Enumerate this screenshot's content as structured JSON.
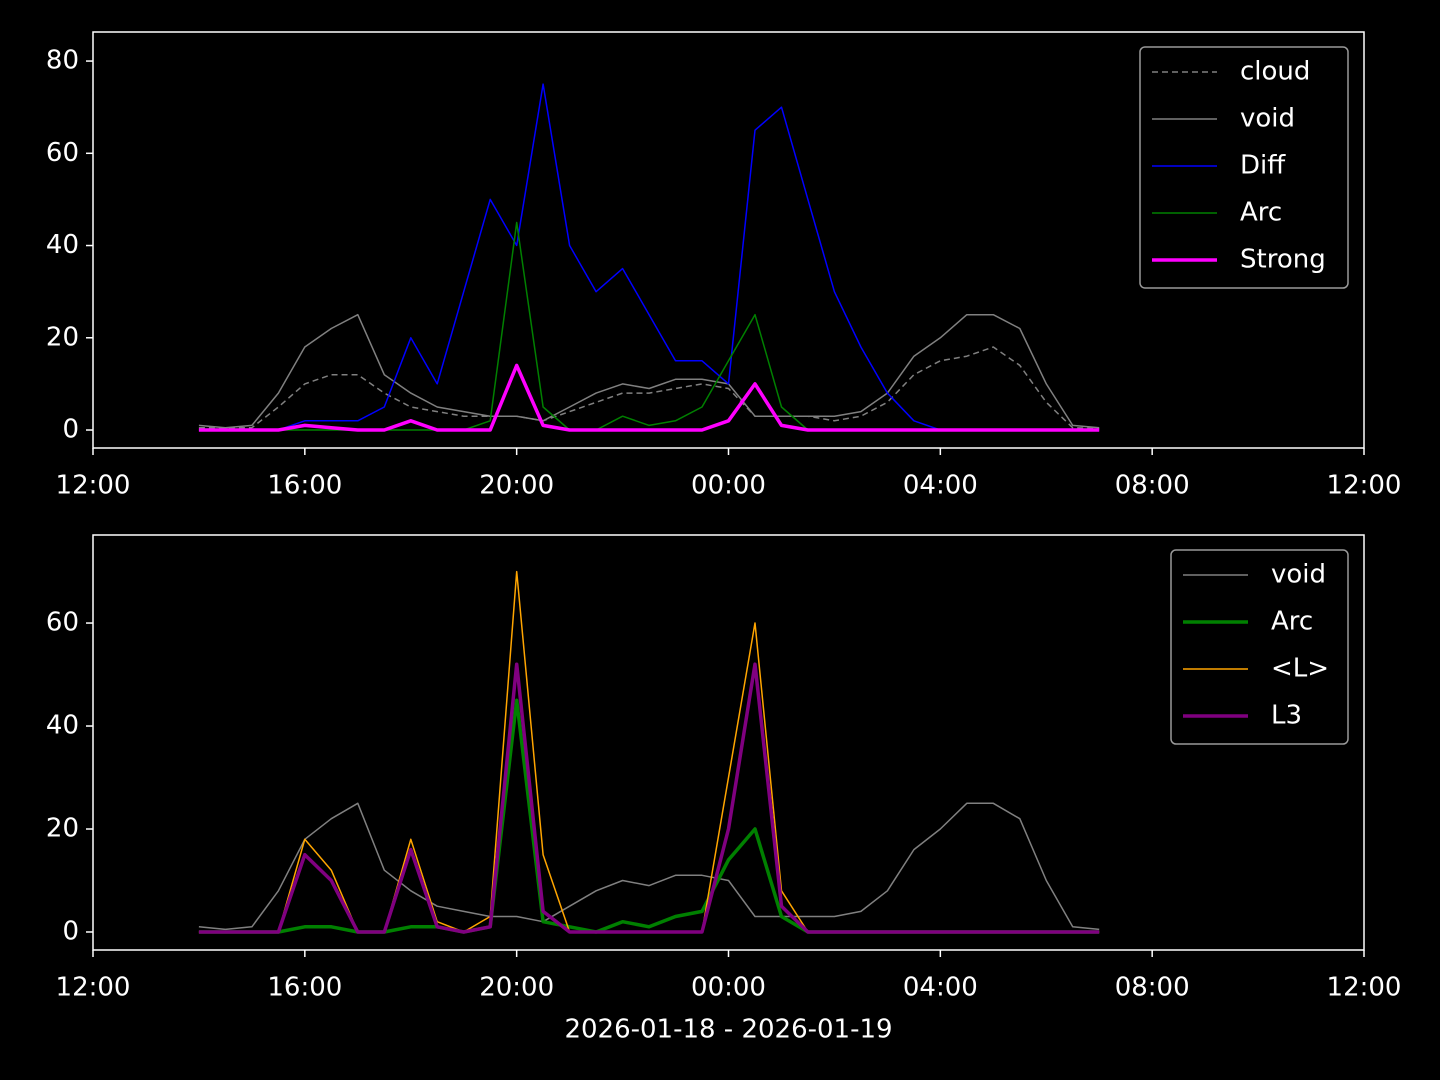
{
  "chart_data": [
    {
      "type": "line",
      "x": [
        "2026-01-18 14:00",
        "2026-01-18 14:30",
        "2026-01-18 15:00",
        "2026-01-18 15:30",
        "2026-01-18 16:00",
        "2026-01-18 16:30",
        "2026-01-18 17:00",
        "2026-01-18 17:30",
        "2026-01-18 18:00",
        "2026-01-18 18:30",
        "2026-01-18 19:00",
        "2026-01-18 19:30",
        "2026-01-18 20:00",
        "2026-01-18 20:30",
        "2026-01-18 21:00",
        "2026-01-18 21:30",
        "2026-01-18 22:00",
        "2026-01-18 22:30",
        "2026-01-18 23:00",
        "2026-01-18 23:30",
        "2026-01-19 00:00",
        "2026-01-19 00:30",
        "2026-01-19 01:00",
        "2026-01-19 01:30",
        "2026-01-19 02:00",
        "2026-01-19 02:30",
        "2026-01-19 03:00",
        "2026-01-19 03:30",
        "2026-01-19 04:00",
        "2026-01-19 04:30",
        "2026-01-19 05:00",
        "2026-01-19 05:30",
        "2026-01-19 06:00",
        "2026-01-19 06:30",
        "2026-01-19 07:00"
      ],
      "xlim": [
        "2026-01-18 12:00",
        "2026-01-19 12:00"
      ],
      "xticks": [
        {
          "value": "2026-01-18 12:00",
          "label": "12:00"
        },
        {
          "value": "2026-01-18 16:00",
          "label": "16:00"
        },
        {
          "value": "2026-01-18 20:00",
          "label": "20:00"
        },
        {
          "value": "2026-01-19 00:00",
          "label": "00:00"
        },
        {
          "value": "2026-01-19 04:00",
          "label": "04:00"
        },
        {
          "value": "2026-01-19 08:00",
          "label": "08:00"
        },
        {
          "value": "2026-01-19 12:00",
          "label": "12:00"
        }
      ],
      "ylim": [
        -3.9,
        86.3
      ],
      "yticks": [
        0,
        20,
        40,
        60,
        80
      ],
      "legend": "upper right",
      "series": [
        {
          "name": "cloud",
          "color": "#808080",
          "width": 1.5,
          "dash": true,
          "values": [
            0.5,
            0.5,
            0.5,
            5,
            10,
            12,
            12,
            8,
            5,
            4,
            3,
            3,
            3,
            2,
            4,
            6,
            8,
            8,
            9,
            10,
            9,
            3,
            3,
            3,
            2,
            3,
            6,
            12,
            15,
            16,
            18,
            14,
            6,
            0.5,
            0.3
          ]
        },
        {
          "name": "void",
          "color": "#808080",
          "width": 1.5,
          "values": [
            1,
            0.5,
            1,
            8,
            18,
            22,
            25,
            12,
            8,
            5,
            4,
            3,
            3,
            2,
            5,
            8,
            10,
            9,
            11,
            11,
            10,
            3,
            3,
            3,
            3,
            4,
            8,
            16,
            20,
            25,
            25,
            22,
            10,
            1,
            0.5
          ]
        },
        {
          "name": "Diff",
          "color": "#0000ff",
          "width": 1.5,
          "values": [
            0,
            0,
            0,
            0,
            2,
            2,
            2,
            5,
            20,
            10,
            30,
            50,
            40,
            75,
            40,
            30,
            35,
            25,
            15,
            15,
            10,
            65,
            70,
            50,
            30,
            18,
            8,
            2,
            0,
            0,
            0,
            0,
            0,
            0,
            0
          ]
        },
        {
          "name": "Arc",
          "color": "#008000",
          "width": 1.5,
          "values": [
            0,
            0,
            0,
            0,
            0,
            0,
            0,
            0,
            0,
            0,
            0,
            2,
            45,
            5,
            0,
            0,
            3,
            1,
            2,
            5,
            15,
            25,
            5,
            0,
            0,
            0,
            0,
            0,
            0,
            0,
            0,
            0,
            0,
            0,
            0
          ]
        },
        {
          "name": "Strong",
          "color": "#ff00ff",
          "width": 3.5,
          "values": [
            0,
            0,
            0,
            0,
            1,
            0.5,
            0,
            0,
            2,
            0,
            0,
            0,
            14,
            1,
            0,
            0,
            0,
            0,
            0,
            0,
            2,
            10,
            1,
            0,
            0,
            0,
            0,
            0,
            0,
            0,
            0,
            0,
            0,
            0,
            0
          ]
        }
      ]
    },
    {
      "type": "line",
      "x": [
        "2026-01-18 14:00",
        "2026-01-18 14:30",
        "2026-01-18 15:00",
        "2026-01-18 15:30",
        "2026-01-18 16:00",
        "2026-01-18 16:30",
        "2026-01-18 17:00",
        "2026-01-18 17:30",
        "2026-01-18 18:00",
        "2026-01-18 18:30",
        "2026-01-18 19:00",
        "2026-01-18 19:30",
        "2026-01-18 20:00",
        "2026-01-18 20:30",
        "2026-01-18 21:00",
        "2026-01-18 21:30",
        "2026-01-18 22:00",
        "2026-01-18 22:30",
        "2026-01-18 23:00",
        "2026-01-18 23:30",
        "2026-01-19 00:00",
        "2026-01-19 00:30",
        "2026-01-19 01:00",
        "2026-01-19 01:30",
        "2026-01-19 02:00",
        "2026-01-19 02:30",
        "2026-01-19 03:00",
        "2026-01-19 03:30",
        "2026-01-19 04:00",
        "2026-01-19 04:30",
        "2026-01-19 05:00",
        "2026-01-19 05:30",
        "2026-01-19 06:00",
        "2026-01-19 06:30",
        "2026-01-19 07:00"
      ],
      "xlim": [
        "2026-01-18 12:00",
        "2026-01-19 12:00"
      ],
      "xticks": [
        {
          "value": "2026-01-18 12:00",
          "label": "12:00"
        },
        {
          "value": "2026-01-18 16:00",
          "label": "16:00"
        },
        {
          "value": "2026-01-18 20:00",
          "label": "20:00"
        },
        {
          "value": "2026-01-19 00:00",
          "label": "00:00"
        },
        {
          "value": "2026-01-19 04:00",
          "label": "04:00"
        },
        {
          "value": "2026-01-19 08:00",
          "label": "08:00"
        },
        {
          "value": "2026-01-19 12:00",
          "label": "12:00"
        }
      ],
      "xlabel": "2026-01-18 - 2026-01-19",
      "ylim": [
        -3.5,
        77.1
      ],
      "yticks": [
        0,
        20,
        40,
        60
      ],
      "legend": "upper right",
      "series": [
        {
          "name": "void",
          "color": "#808080",
          "width": 1.5,
          "values": [
            1,
            0.5,
            1,
            8,
            18,
            22,
            25,
            12,
            8,
            5,
            4,
            3,
            3,
            2,
            5,
            8,
            10,
            9,
            11,
            11,
            10,
            3,
            3,
            3,
            3,
            4,
            8,
            16,
            20,
            25,
            25,
            22,
            10,
            1,
            0.5
          ]
        },
        {
          "name": "Arc",
          "color": "#008000",
          "width": 3.5,
          "values": [
            0,
            0,
            0,
            0,
            1,
            1,
            0,
            0,
            1,
            1,
            0,
            1,
            45,
            2,
            1,
            0,
            2,
            1,
            3,
            4,
            14,
            20,
            3,
            0,
            0,
            0,
            0,
            0,
            0,
            0,
            0,
            0,
            0,
            0,
            0
          ]
        },
        {
          "name": "<L>",
          "color": "#ffa500",
          "width": 1.5,
          "values": [
            0,
            0,
            0,
            0,
            18,
            12,
            0,
            0,
            18,
            2,
            0,
            3,
            70,
            15,
            0,
            0,
            0,
            0,
            0,
            0,
            30,
            60,
            8,
            0,
            0,
            0,
            0,
            0,
            0,
            0,
            0,
            0,
            0,
            0,
            0
          ]
        },
        {
          "name": "L3",
          "color": "#800080",
          "width": 3.5,
          "values": [
            0,
            0,
            0,
            0,
            15,
            10,
            0,
            0,
            16,
            1,
            0,
            1,
            52,
            4,
            0,
            0,
            0,
            0,
            0,
            0,
            20,
            52,
            5,
            0,
            0,
            0,
            0,
            0,
            0,
            0,
            0,
            0,
            0,
            0,
            0
          ]
        }
      ]
    }
  ]
}
